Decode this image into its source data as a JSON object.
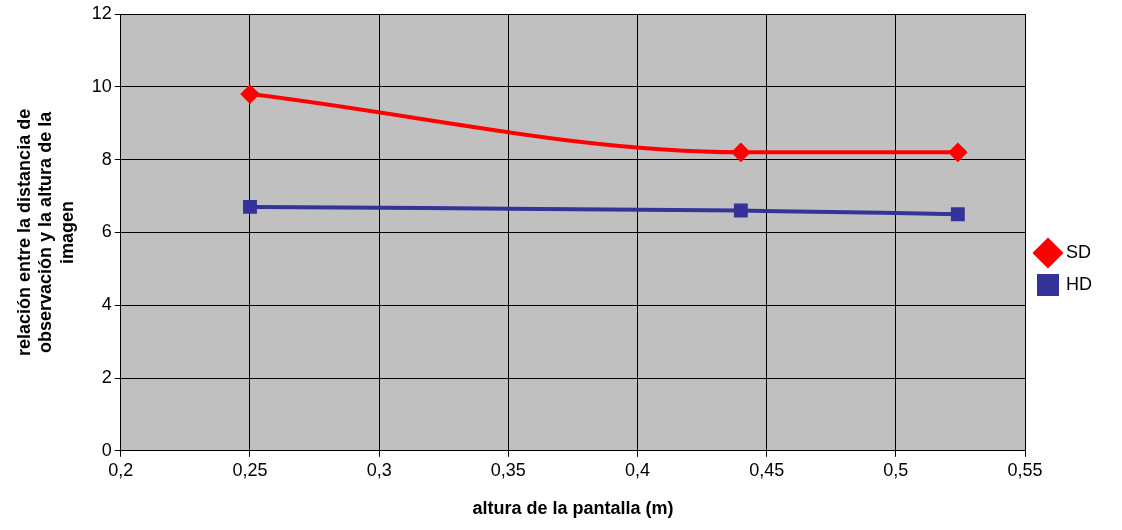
{
  "chart_data": {
    "type": "line",
    "xlabel": "altura de la pantalla (m)",
    "ylabel": "relación entre la distancia de observación y la altura de la imagen",
    "x": [
      0.25,
      0.44,
      0.524
    ],
    "series": [
      {
        "name": "SD",
        "color": "#ff0000",
        "marker": "diamond",
        "values": [
          9.8,
          8.2,
          8.2
        ]
      },
      {
        "name": "HD",
        "color": "#333399",
        "marker": "square",
        "values": [
          6.7,
          6.6,
          6.5
        ]
      }
    ],
    "xlim": [
      0.2,
      0.55
    ],
    "xticks": [
      {
        "value": 0.2,
        "label": "0,2"
      },
      {
        "value": 0.25,
        "label": "0,25"
      },
      {
        "value": 0.3,
        "label": "0,3"
      },
      {
        "value": 0.35,
        "label": "0,35"
      },
      {
        "value": 0.4,
        "label": "0,4"
      },
      {
        "value": 0.45,
        "label": "0,45"
      },
      {
        "value": 0.5,
        "label": "0,5"
      },
      {
        "value": 0.55,
        "label": "0,55"
      }
    ],
    "ylim": [
      0,
      12
    ],
    "yticks": [
      0,
      2,
      4,
      6,
      8,
      10,
      12
    ],
    "grid": true,
    "legend": "right",
    "line_style": "solid"
  }
}
